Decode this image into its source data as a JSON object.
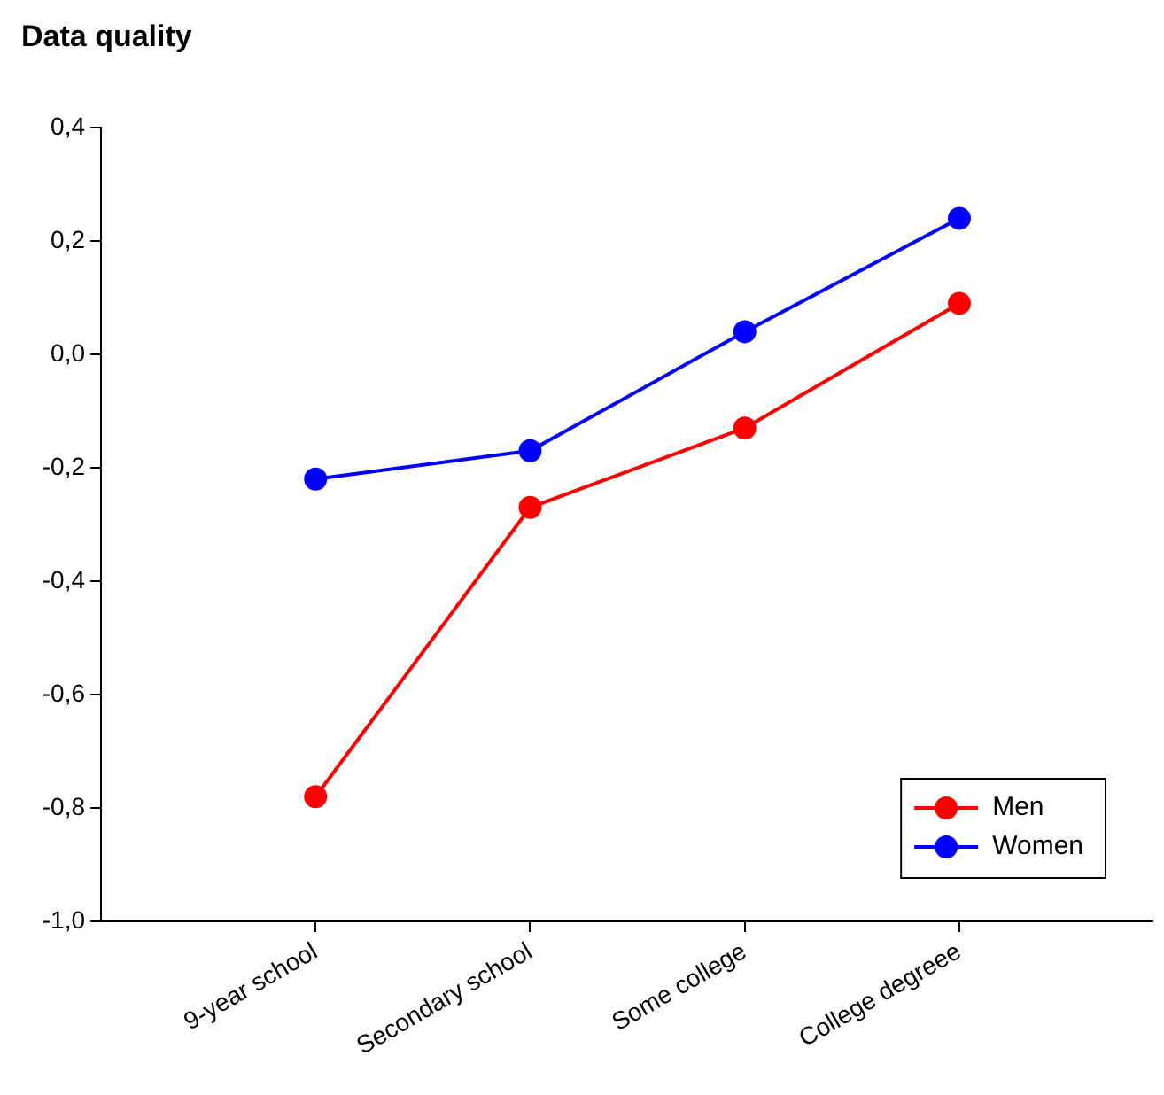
{
  "chart_data": {
    "type": "line",
    "title": "Data quality",
    "categories": [
      "9-year school",
      "Secondary school",
      "Some college",
      "College degreee"
    ],
    "series": [
      {
        "name": "Men",
        "color": "#ff0000",
        "values": [
          -0.78,
          -0.27,
          -0.13,
          0.09
        ]
      },
      {
        "name": "Women",
        "color": "#0000ff",
        "values": [
          -0.22,
          -0.17,
          0.04,
          0.24
        ]
      }
    ],
    "ylim": [
      -1.0,
      0.4
    ],
    "yticks": [
      {
        "value": -1.0,
        "label": "-1,0"
      },
      {
        "value": -0.8,
        "label": "-0,8"
      },
      {
        "value": -0.6,
        "label": "-0,6"
      },
      {
        "value": -0.4,
        "label": "-0,4"
      },
      {
        "value": -0.2,
        "label": "-0,2"
      },
      {
        "value": 0,
        "label": "0,0"
      },
      {
        "value": 0.2,
        "label": "0,2"
      },
      {
        "value": 0.4,
        "label": "0,4"
      }
    ],
    "grid": false,
    "legend": "bottom right",
    "marker": "circle",
    "line_style": "solid"
  }
}
